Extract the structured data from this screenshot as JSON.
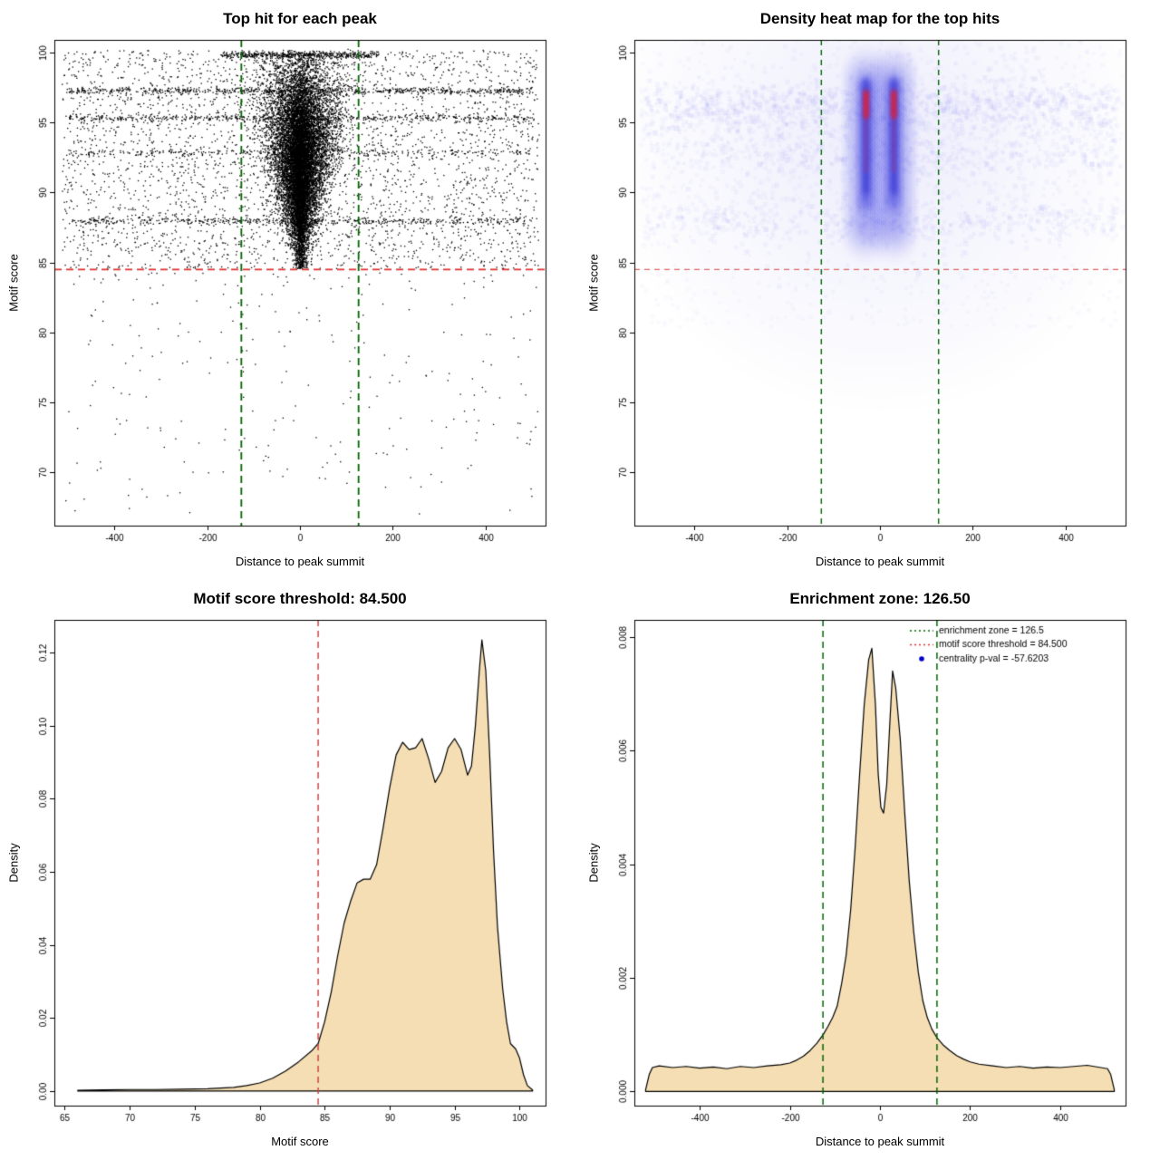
{
  "colors": {
    "background": "#ffffff",
    "points": "#000000",
    "density_fill": "#f5deb3",
    "threshold_red": "#e03131",
    "zone_green": "#006400",
    "heat_blue": "#4646e6",
    "heat_red": "#ff1f1f",
    "legend_point_blue": "#0000cd"
  },
  "chart_data": [
    {
      "id": "top-hit-scatter",
      "type": "scatter",
      "title": "Top hit for each peak",
      "xlabel": "Distance to peak summit",
      "ylabel": "Motif score",
      "xlim": [
        -530,
        530
      ],
      "ylim": [
        66.2,
        100.9
      ],
      "xticks": [
        -400,
        -200,
        0,
        200,
        400
      ],
      "xtick_labels": [
        "-400",
        "-200",
        "0",
        "200",
        "400"
      ],
      "yticks": [
        70,
        75,
        80,
        85,
        90,
        95,
        100
      ],
      "ytick_labels": [
        "70",
        "75",
        "80",
        "85",
        "90",
        "95",
        "100"
      ],
      "grid": false,
      "legend_position": "none",
      "vlines": [
        {
          "x": -126.5,
          "color": "#006400",
          "width": 1.8,
          "dash": [
            8,
            5
          ]
        },
        {
          "x": 126.5,
          "color": "#006400",
          "width": 1.8,
          "dash": [
            8,
            5
          ]
        }
      ],
      "hlines": [
        {
          "y": 84.5,
          "color": "#e03131",
          "width": 1.6,
          "dash": [
            8,
            5
          ]
        }
      ],
      "cloud": {
        "seed": 42,
        "core": {
          "n": 9000,
          "x_sigma": 55,
          "y_mean": 92.6,
          "y_sigma": 3.6,
          "y_min": 84.6,
          "y_max": 100.2
        },
        "inner": {
          "n": 3500,
          "x_sigma": 20
        },
        "bands": [
          {
            "y": 99.85,
            "n": 450,
            "x_range": [
              -170,
              170
            ],
            "jitter": 0.12
          },
          {
            "y": 97.3,
            "n": 650,
            "x_range": [
              -500,
              500
            ],
            "jitter": 0.12
          },
          {
            "y": 95.35,
            "n": 480,
            "x_range": [
              -500,
              500
            ],
            "jitter": 0.12
          },
          {
            "y": 92.9,
            "n": 260,
            "x_range": [
              -500,
              500
            ],
            "jitter": 0.12
          },
          {
            "y": 88.0,
            "n": 430,
            "x_range": [
              -500,
              500
            ],
            "jitter": 0.12
          }
        ],
        "background": {
          "n": 3200,
          "x_range": [
            -515,
            515
          ],
          "y_range": [
            84.6,
            100.2
          ]
        },
        "below": {
          "n": 270,
          "x_range": [
            -515,
            515
          ],
          "y_top": 84.3,
          "y_bottom": 67,
          "power": 1.4
        }
      }
    },
    {
      "id": "density-heatmap",
      "type": "heatmap",
      "title": "Density heat map for the top hits",
      "xlabel": "Distance to peak summit",
      "ylabel": "Motif score",
      "xlim": [
        -530,
        530
      ],
      "ylim": [
        66.2,
        100.9
      ],
      "xticks": [
        -400,
        -200,
        0,
        200,
        400
      ],
      "xtick_labels": [
        "-400",
        "-200",
        "0",
        "200",
        "400"
      ],
      "yticks": [
        70,
        75,
        80,
        85,
        90,
        95,
        100
      ],
      "ytick_labels": [
        "70",
        "75",
        "80",
        "85",
        "90",
        "95",
        "100"
      ],
      "grid": false,
      "legend_position": "none",
      "vlines": [
        {
          "x": -126.5,
          "color": "#006400",
          "width": 1.4,
          "dash": [
            6,
            5
          ]
        },
        {
          "x": 126.5,
          "color": "#006400",
          "width": 1.4,
          "dash": [
            6,
            5
          ]
        }
      ],
      "hlines": [
        {
          "y": 84.5,
          "color": "#e06666",
          "width": 1.2,
          "dash": [
            6,
            5
          ]
        }
      ],
      "heat": {
        "seed": 7,
        "columns_x": [
          -30,
          30
        ],
        "col_y": [
          86.5,
          99.0
        ],
        "mid_y": [
          89.0,
          98.0
        ],
        "core_y": [
          90.0,
          98.0
        ],
        "red_streak_y": [
          91.5,
          97.0
        ],
        "red_core_y": [
          95.4,
          97.2
        ],
        "speckle_n": 1500,
        "speckle_rows": [
          {
            "y": 96.5,
            "n": 600
          },
          {
            "y": 95.3,
            "n": 300
          },
          {
            "y": 92.7,
            "n": 250
          },
          {
            "y": 88.0,
            "n": 420
          }
        ]
      }
    },
    {
      "id": "motif-score-density",
      "type": "density",
      "title": "Motif score threshold: 84.500",
      "xlabel": "Motif score",
      "ylabel": "Density",
      "xlim": [
        64.2,
        102
      ],
      "ylim": [
        -0.004,
        0.129
      ],
      "xticks": [
        65,
        70,
        75,
        80,
        85,
        90,
        95,
        100
      ],
      "xtick_labels": [
        "65",
        "70",
        "75",
        "80",
        "85",
        "90",
        "95",
        "100"
      ],
      "yticks": [
        0,
        0.02,
        0.04,
        0.06,
        0.08,
        0.1,
        0.12
      ],
      "ytick_labels": [
        "0.00",
        "0.02",
        "0.04",
        "0.06",
        "0.08",
        "0.10",
        "0.12"
      ],
      "grid": false,
      "fill": "#f5deb3",
      "legend_position": "none",
      "vlines": [
        {
          "x": 84.5,
          "color": "#cc4444",
          "width": 1.5,
          "dash": [
            7,
            5
          ]
        }
      ],
      "hlines": [],
      "curve": {
        "x": [
          66,
          68,
          70,
          72,
          74,
          76,
          77,
          78,
          79,
          80,
          81,
          82,
          83,
          84,
          84.5,
          85,
          85.5,
          86,
          86.5,
          87,
          87.5,
          88,
          88.5,
          89,
          89.5,
          90,
          90.5,
          91,
          91.5,
          92,
          92.5,
          93,
          93.5,
          94,
          94.5,
          95,
          95.5,
          96,
          96.3,
          96.6,
          96.9,
          97.1,
          97.4,
          97.7,
          98,
          98.3,
          98.7,
          99,
          99.3,
          99.7,
          100,
          100.3,
          100.6,
          101
        ],
        "y": [
          0.0002,
          0.0003,
          0.0004,
          0.0004,
          0.0005,
          0.0006,
          0.0008,
          0.001,
          0.0015,
          0.0022,
          0.0035,
          0.0055,
          0.008,
          0.011,
          0.013,
          0.019,
          0.027,
          0.037,
          0.046,
          0.052,
          0.057,
          0.058,
          0.058,
          0.062,
          0.072,
          0.083,
          0.092,
          0.0955,
          0.0935,
          0.094,
          0.0965,
          0.091,
          0.0845,
          0.0875,
          0.094,
          0.0965,
          0.0935,
          0.0865,
          0.089,
          0.1,
          0.115,
          0.1235,
          0.115,
          0.092,
          0.0655,
          0.045,
          0.028,
          0.019,
          0.013,
          0.0115,
          0.009,
          0.0045,
          0.0015,
          0.0003
        ]
      }
    },
    {
      "id": "distance-density",
      "type": "density",
      "title": "Enrichment zone: 126.50",
      "xlabel": "Distance to peak summit",
      "ylabel": "Density",
      "xlim": [
        -545,
        545
      ],
      "ylim": [
        -0.00025,
        0.0083
      ],
      "xticks": [
        -400,
        -200,
        0,
        200,
        400
      ],
      "xtick_labels": [
        "-400",
        "-200",
        "0",
        "200",
        "400"
      ],
      "yticks": [
        0,
        0.002,
        0.004,
        0.006,
        0.008
      ],
      "ytick_labels": [
        "0.000",
        "0.002",
        "0.004",
        "0.006",
        "0.008"
      ],
      "grid": false,
      "fill": "#f5deb3",
      "legend_position": "top-right",
      "vlines": [
        {
          "x": -126.5,
          "color": "#006400",
          "width": 1.5,
          "dash": [
            7,
            5
          ]
        },
        {
          "x": 126.5,
          "color": "#006400",
          "width": 1.5,
          "dash": [
            7,
            5
          ]
        }
      ],
      "hlines": [],
      "curve": {
        "x": [
          -520,
          -512,
          -505,
          -490,
          -460,
          -430,
          -400,
          -370,
          -340,
          -310,
          -280,
          -250,
          -220,
          -200,
          -185,
          -170,
          -155,
          -140,
          -126,
          -115,
          -105,
          -95,
          -85,
          -75,
          -65,
          -55,
          -45,
          -35,
          -25,
          -18,
          -10,
          -4,
          2,
          8,
          15,
          22,
          28,
          35,
          45,
          55,
          65,
          75,
          85,
          95,
          105,
          115,
          126,
          140,
          155,
          170,
          185,
          200,
          220,
          250,
          280,
          310,
          340,
          370,
          400,
          430,
          460,
          490,
          505,
          512,
          520
        ],
        "y": [
          3e-05,
          0.0003,
          0.00042,
          0.00045,
          0.00042,
          0.00044,
          0.00041,
          0.00043,
          0.0004,
          0.00044,
          0.00042,
          0.00045,
          0.00047,
          0.0005,
          0.00055,
          0.00062,
          0.00072,
          0.00085,
          0.001,
          0.00115,
          0.0013,
          0.0015,
          0.0019,
          0.0024,
          0.0032,
          0.0043,
          0.0056,
          0.0068,
          0.0076,
          0.0078,
          0.0068,
          0.0056,
          0.005,
          0.0049,
          0.0054,
          0.0065,
          0.0074,
          0.0071,
          0.0062,
          0.0049,
          0.0037,
          0.0028,
          0.0021,
          0.0016,
          0.0013,
          0.0011,
          0.00095,
          0.00082,
          0.00072,
          0.00063,
          0.00057,
          0.00052,
          0.00048,
          0.00045,
          0.00042,
          0.00044,
          0.00041,
          0.00043,
          0.00042,
          0.00044,
          0.00046,
          0.00042,
          0.0004,
          0.0003,
          3e-05
        ]
      },
      "legend": {
        "items": [
          {
            "marker": "line",
            "color": "#006400",
            "label": "enrichment zone = 126.5"
          },
          {
            "marker": "line",
            "color": "#e03131",
            "label": "motif score threshold = 84.500"
          },
          {
            "marker": "point",
            "color": "#0000cd",
            "label": "centrality p-val = -57.6203"
          }
        ]
      }
    }
  ]
}
